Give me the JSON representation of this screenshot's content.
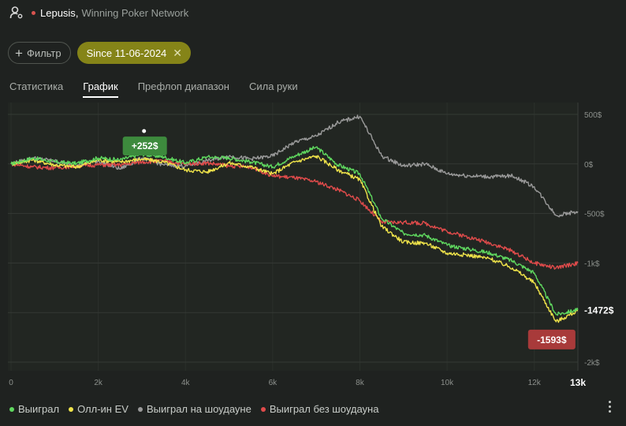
{
  "header": {
    "player": "Lepusis",
    "separator": ",",
    "network": "Winning Poker Network"
  },
  "filters": {
    "filter_label": "Фильтр",
    "chip_label": "Since 11-06-2024",
    "chip_close": "✕"
  },
  "tabs": [
    {
      "label": "Статистика",
      "active": false
    },
    {
      "label": "График",
      "active": true
    },
    {
      "label": "Префлоп диапазон",
      "active": false
    },
    {
      "label": "Сила руки",
      "active": false
    }
  ],
  "colors": {
    "won": "#5fd95f",
    "allin_ev": "#f0e44a",
    "showdown": "#9a9a9a",
    "non_showdown": "#e04b4b"
  },
  "chart_data": {
    "type": "line",
    "x_ticks": [
      {
        "value": 0,
        "label": "0"
      },
      {
        "value": 2000,
        "label": "2k"
      },
      {
        "value": 4000,
        "label": "4k"
      },
      {
        "value": 6000,
        "label": "6k"
      },
      {
        "value": 8000,
        "label": "8k"
      },
      {
        "value": 10000,
        "label": "10k"
      },
      {
        "value": 12000,
        "label": "12k"
      }
    ],
    "x_end_label": "13k",
    "xlim": [
      0,
      13000
    ],
    "y_ticks": [
      {
        "value": 500,
        "label": "500$"
      },
      {
        "value": 0,
        "label": "0$"
      },
      {
        "value": -500,
        "label": "-500$"
      },
      {
        "value": -1000,
        "label": "-1k$"
      },
      {
        "value": -1500,
        "label": ""
      },
      {
        "value": -2000,
        "label": "-2k$"
      }
    ],
    "ylim": [
      -2000,
      500
    ],
    "grid": true,
    "legend_position": "bottom-left",
    "series": [
      {
        "name": "Выиграл",
        "color": "#5fd95f",
        "x": [
          0,
          500,
          1000,
          1500,
          2000,
          2500,
          3000,
          3500,
          4000,
          4500,
          5000,
          5500,
          6000,
          6500,
          7000,
          7500,
          8000,
          8500,
          9000,
          9500,
          10000,
          10500,
          11000,
          11500,
          12000,
          12500,
          13000
        ],
        "y": [
          0,
          60,
          20,
          5,
          60,
          40,
          100,
          70,
          10,
          70,
          60,
          20,
          -30,
          80,
          170,
          -10,
          -100,
          -550,
          -700,
          -720,
          -820,
          -860,
          -900,
          -980,
          -1100,
          -1520,
          -1472
        ]
      },
      {
        "name": "Олл-ин EV",
        "color": "#f0e44a",
        "x": [
          0,
          500,
          1000,
          1500,
          2000,
          2500,
          3000,
          3500,
          4000,
          4500,
          5000,
          5500,
          6000,
          6500,
          7000,
          7500,
          8000,
          8500,
          9000,
          9500,
          10000,
          10500,
          11000,
          11500,
          12000,
          12500,
          13000
        ],
        "y": [
          0,
          40,
          -10,
          -30,
          40,
          20,
          50,
          20,
          -60,
          -80,
          10,
          -30,
          -100,
          20,
          80,
          -60,
          -160,
          -630,
          -790,
          -800,
          -900,
          -920,
          -960,
          -1050,
          -1200,
          -1593,
          -1480
        ]
      },
      {
        "name": "Выиграл на шоудауне",
        "color": "#9a9a9a",
        "x": [
          0,
          500,
          1000,
          1500,
          2000,
          2500,
          3000,
          3500,
          4000,
          4500,
          5000,
          5500,
          6000,
          6500,
          7000,
          7500,
          8000,
          8500,
          9000,
          9500,
          10000,
          10500,
          11000,
          11500,
          12000,
          12500,
          13000
        ],
        "y": [
          0,
          60,
          30,
          -20,
          30,
          -50,
          60,
          -10,
          -20,
          30,
          80,
          50,
          80,
          220,
          280,
          420,
          480,
          80,
          -20,
          0,
          -100,
          -120,
          -130,
          -120,
          -230,
          -520,
          -480
        ]
      },
      {
        "name": "Выиграл без шоудауна",
        "color": "#e04b4b",
        "x": [
          0,
          500,
          1000,
          1500,
          2000,
          2500,
          3000,
          3500,
          4000,
          4500,
          5000,
          5500,
          6000,
          6500,
          7000,
          7500,
          8000,
          8500,
          9000,
          9500,
          10000,
          10500,
          11000,
          11500,
          12000,
          12500,
          13000
        ],
        "y": [
          0,
          -30,
          -40,
          -20,
          -10,
          -10,
          20,
          30,
          0,
          10,
          -20,
          -30,
          -120,
          -140,
          -180,
          -260,
          -370,
          -590,
          -590,
          -600,
          -680,
          -740,
          -800,
          -880,
          -1000,
          -1050,
          -1000
        ]
      }
    ],
    "annotations": [
      {
        "label": "+252$",
        "x": 3050,
        "y": 252,
        "kind": "max"
      },
      {
        "label": "-1593$",
        "x": 12400,
        "y": -1593,
        "kind": "min"
      },
      {
        "label": "-1472$",
        "x": 13000,
        "y": -1472,
        "kind": "end"
      }
    ]
  }
}
